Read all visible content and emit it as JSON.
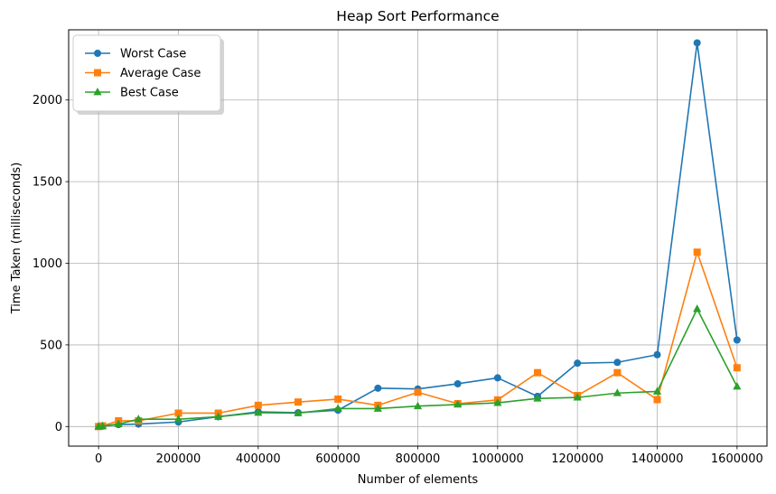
{
  "chart_data": {
    "type": "line",
    "title": "Heap Sort Performance",
    "xlabel": "Number of elements",
    "ylabel": "Time Taken (milliseconds)",
    "xlim": [
      -75000,
      1675000
    ],
    "ylim": [
      -120,
      2430
    ],
    "xticks": [
      0,
      200000,
      400000,
      600000,
      800000,
      1000000,
      1200000,
      1400000,
      1600000
    ],
    "xtick_labels": [
      "0",
      "200000",
      "400000",
      "600000",
      "800000",
      "1000000",
      "1200000",
      "1400000",
      "1600000"
    ],
    "yticks": [
      0,
      500,
      1000,
      1500,
      2000
    ],
    "ytick_labels": [
      "0",
      "500",
      "1000",
      "1500",
      "2000"
    ],
    "grid": true,
    "legend_position": "top-left",
    "x": [
      0,
      10000,
      50000,
      100000,
      200000,
      300000,
      400000,
      500000,
      600000,
      700000,
      800000,
      900000,
      1000000,
      1100000,
      1200000,
      1300000,
      1400000,
      1500000,
      1600000
    ],
    "series": [
      {
        "name": "Worst Case",
        "color": "#1f77b4",
        "marker": "circle",
        "values": [
          0,
          2,
          12,
          15,
          28,
          60,
          90,
          85,
          100,
          235,
          230,
          262,
          298,
          185,
          388,
          393,
          440,
          2350,
          530
        ]
      },
      {
        "name": "Average Case",
        "color": "#ff7f0e",
        "marker": "square",
        "values": [
          0,
          4,
          35,
          35,
          82,
          82,
          130,
          150,
          168,
          130,
          210,
          140,
          163,
          330,
          190,
          330,
          165,
          1068,
          360
        ]
      },
      {
        "name": "Best Case",
        "color": "#2ca02c",
        "marker": "triangle",
        "values": [
          0,
          3,
          15,
          45,
          45,
          60,
          85,
          82,
          110,
          110,
          125,
          135,
          145,
          172,
          178,
          205,
          215,
          720,
          245
        ]
      }
    ]
  }
}
